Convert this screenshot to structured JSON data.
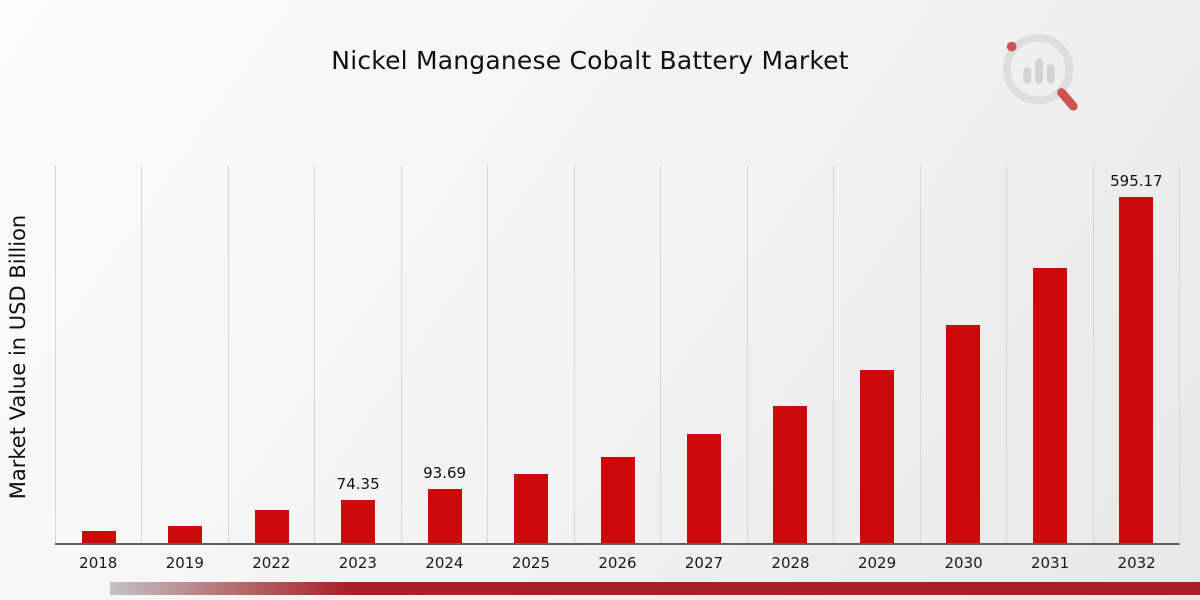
{
  "chart_data": {
    "type": "bar",
    "title": "Nickel Manganese Cobalt Battery Market",
    "ylabel": "Market Value in USD Billion",
    "xlabel": "",
    "categories": [
      "2018",
      "2019",
      "2022",
      "2023",
      "2024",
      "2025",
      "2026",
      "2027",
      "2028",
      "2029",
      "2030",
      "2031",
      "2032"
    ],
    "values": [
      21,
      28.5,
      57,
      74.35,
      93.69,
      118.05,
      148.75,
      187.45,
      236.2,
      297.65,
      375.1,
      472.4,
      595.17
    ],
    "labels": {
      "2023": "74.35",
      "2024": "93.69",
      "2032": "595.17"
    },
    "bar_color": "#cc0a0a",
    "ylim": [
      0,
      650
    ],
    "grid": "vertical",
    "gridline_color": "#d6d6d6",
    "legend": "none"
  },
  "logo": {
    "name": "market-research-future-logo"
  },
  "footer": {
    "ribbon_color": "#a82025"
  }
}
